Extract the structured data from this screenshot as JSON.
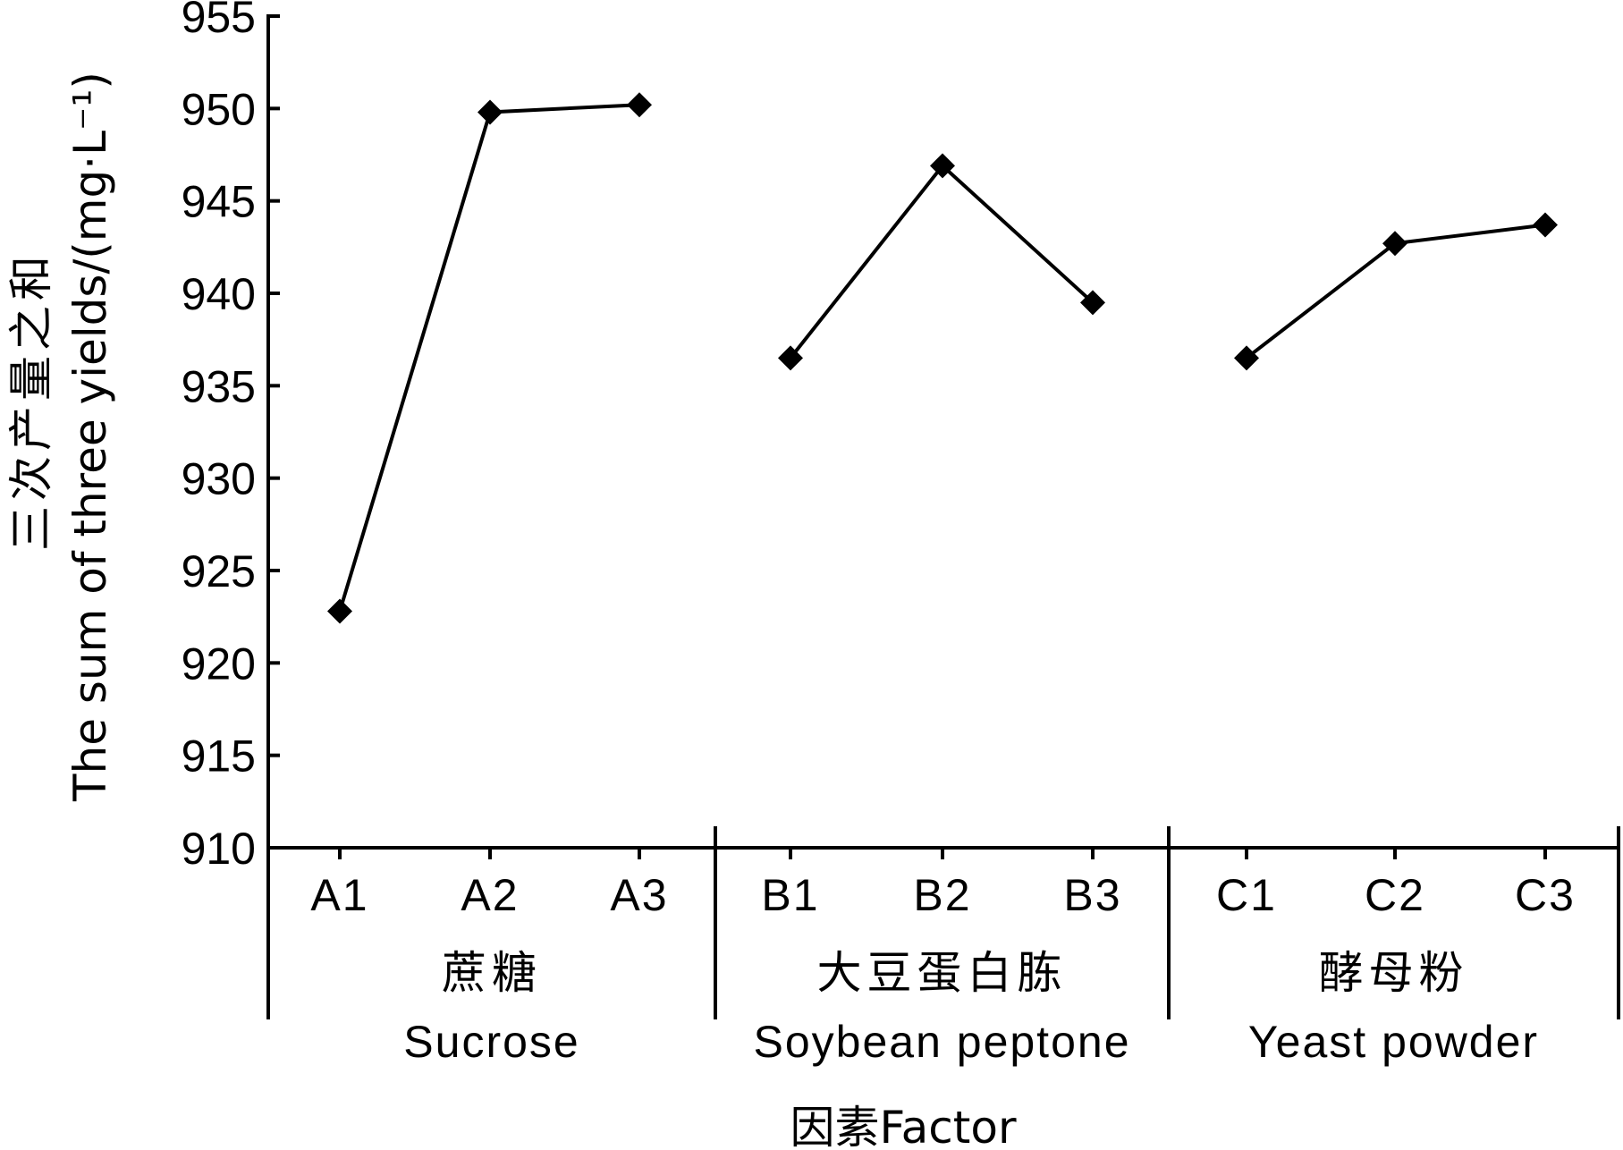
{
  "chart_data": {
    "type": "line",
    "ylabel_cn": "三次产量之和",
    "ylabel_en": "The sum of three yields/(mg·L⁻¹)",
    "xlabel": "因素Factor",
    "ylim": [
      910,
      955
    ],
    "yticks": [
      910,
      915,
      920,
      925,
      930,
      935,
      940,
      945,
      950,
      955
    ],
    "categories": [
      "A1",
      "A2",
      "A3",
      "B1",
      "B2",
      "B3",
      "C1",
      "C2",
      "C3"
    ],
    "groups": [
      {
        "name_cn": "蔗糖",
        "name_en": "Sucrose",
        "categories": [
          "A1",
          "A2",
          "A3"
        ],
        "values": [
          922.8,
          949.8,
          950.2
        ]
      },
      {
        "name_cn": "大豆蛋白胨",
        "name_en": "Soybean peptone",
        "categories": [
          "B1",
          "B2",
          "B3"
        ],
        "values": [
          936.5,
          946.9,
          939.5
        ]
      },
      {
        "name_cn": "酵母粉",
        "name_en": "Yeast powder",
        "categories": [
          "C1",
          "C2",
          "C3"
        ],
        "values": [
          936.5,
          942.7,
          943.7
        ]
      }
    ]
  }
}
